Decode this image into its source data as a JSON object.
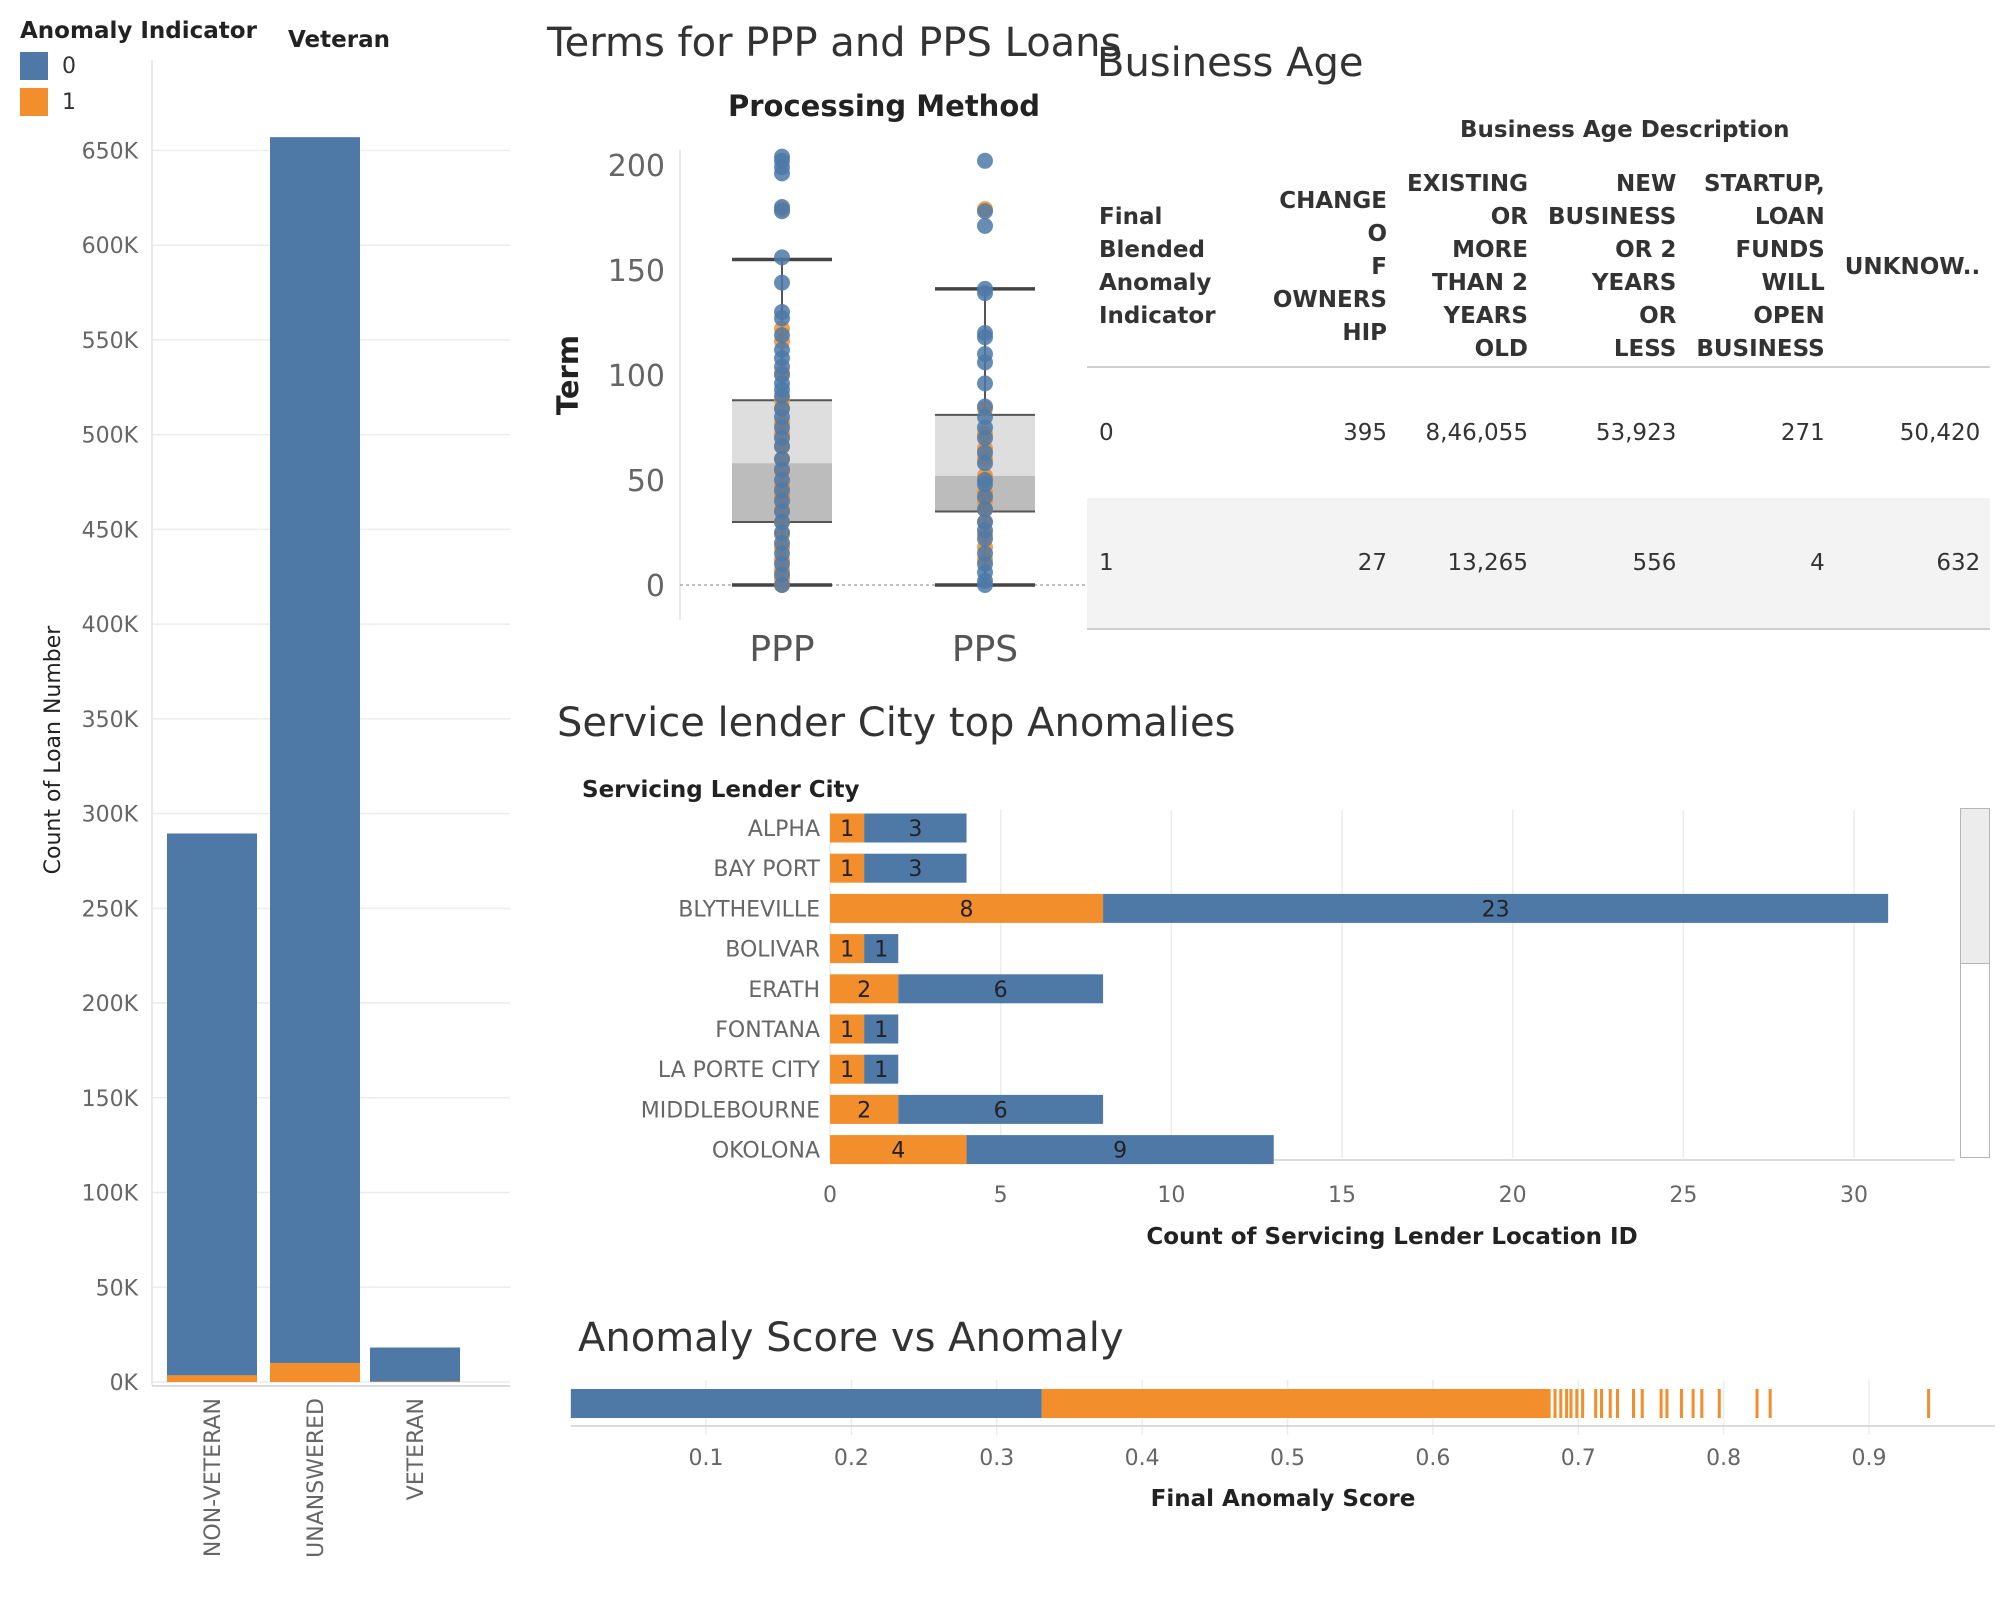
{
  "colors": {
    "anomaly_0": "#4e79a7",
    "anomaly_1": "#f28e2b",
    "grid": "#ececec",
    "box_light": "#dedede",
    "box_dark": "#bcbcbc"
  },
  "legend": {
    "title": "Anomaly Indicator",
    "items": [
      {
        "label": "0",
        "color": "#4e79a7"
      },
      {
        "label": "1",
        "color": "#f28e2b"
      }
    ]
  },
  "business_age": {
    "title": "Business Age",
    "super_header": "Business Age Description",
    "row_header": "Final\nBlended\nAnomaly\nIndicator",
    "columns": [
      "CHANGE O\nF OWNERS\nHIP",
      "EXISTING\nOR MORE\nTHAN 2\nYEARS\nOLD",
      "NEW\nBUSINESS\nOR 2\nYEARS OR\nLESS",
      "STARTUP,\nLOAN\nFUNDS\nWILL OPEN\nBUSINESS",
      "UNKNOW.."
    ],
    "rows": [
      {
        "label": "0",
        "values": [
          "395",
          "8,46,055",
          "53,923",
          "271",
          "50,420"
        ]
      },
      {
        "label": "1",
        "values": [
          "27",
          "13,265",
          "556",
          "4",
          "632"
        ]
      }
    ]
  },
  "chart_data": [
    {
      "type": "bar",
      "id": "veteran",
      "title": "",
      "header": "Veteran",
      "stacked": true,
      "categories": [
        "NON-VETERAN",
        "UNANSWERED",
        "VETERAN"
      ],
      "series": [
        {
          "name": "0",
          "values": [
            286000,
            647000,
            18000
          ]
        },
        {
          "name": "1",
          "values": [
            3500,
            10000,
            200
          ]
        }
      ],
      "ylabel": "Count of Loan Number",
      "ylim": [
        0,
        665000
      ],
      "yticks": [
        0,
        50000,
        100000,
        150000,
        200000,
        250000,
        300000,
        350000,
        400000,
        450000,
        500000,
        550000,
        600000,
        650000
      ],
      "ytick_labels": [
        "0K",
        "50K",
        "100K",
        "150K",
        "200K",
        "250K",
        "300K",
        "350K",
        "400K",
        "450K",
        "500K",
        "550K",
        "600K",
        "650K"
      ],
      "grid": true
    },
    {
      "type": "box",
      "id": "terms",
      "title": "Terms for PPP and PPS Loans",
      "header": "Processing Method",
      "categories": [
        "PPP",
        "PPS"
      ],
      "ylabel": "Term",
      "ylim": [
        -18,
        205
      ],
      "yticks": [
        0,
        50,
        100,
        150,
        200
      ],
      "boxes": [
        {
          "category": "PPP",
          "whisker_low": 0,
          "q1": 30,
          "median": 58,
          "q3": 88,
          "whisker_high": 155
        },
        {
          "category": "PPS",
          "whisker_low": 0,
          "q1": 35,
          "median": 52,
          "q3": 81,
          "whisker_high": 141
        }
      ],
      "points_0": [
        {
          "category": "PPP",
          "values": [
            204,
            202,
            199,
            196,
            180,
            178,
            156,
            144,
            130,
            127,
            119,
            112,
            108,
            104,
            100,
            96,
            93,
            90,
            84,
            80,
            75,
            70,
            66,
            60,
            55,
            50,
            45,
            40,
            35,
            30,
            25,
            20,
            15,
            10,
            5,
            0
          ]
        },
        {
          "category": "PPS",
          "values": [
            202,
            178,
            171,
            141,
            139,
            120,
            118,
            110,
            106,
            96,
            85,
            80,
            75,
            70,
            63,
            58,
            50,
            48,
            42,
            36,
            30,
            26,
            22,
            15,
            10,
            6,
            2,
            0
          ]
        }
      ],
      "points_1": [
        {
          "category": "PPP",
          "values": [
            179,
            122,
            116,
            101,
            88,
            84,
            77,
            72,
            66,
            60,
            54,
            47,
            42,
            36,
            30,
            24,
            18,
            12,
            7,
            3,
            0
          ]
        },
        {
          "category": "PPS",
          "values": [
            179,
            84,
            72,
            65,
            60,
            52,
            44,
            40,
            36,
            30,
            24,
            18,
            12
          ]
        }
      ]
    },
    {
      "type": "bar",
      "id": "lender_city",
      "orientation": "horizontal",
      "stacked": true,
      "title": "Service lender City top Anomalies",
      "header": "Servicing Lender City",
      "categories": [
        "ALPHA",
        "BAY PORT",
        "BLYTHEVILLE",
        "BOLIVAR",
        "ERATH",
        "FONTANA",
        "LA PORTE CITY",
        "MIDDLEBOURNE",
        "OKOLONA"
      ],
      "series": [
        {
          "name": "1",
          "values": [
            1,
            1,
            8,
            1,
            2,
            1,
            1,
            2,
            4
          ]
        },
        {
          "name": "0",
          "values": [
            3,
            3,
            23,
            1,
            6,
            1,
            1,
            6,
            9
          ]
        }
      ],
      "xlabel": "Count of Servicing Lender Location ID",
      "xlim": [
        0,
        33.5
      ],
      "xticks": [
        0,
        5,
        10,
        15,
        20,
        25,
        30
      ],
      "grid": true
    },
    {
      "type": "strip",
      "id": "anomaly_score",
      "title": "Anomaly Score vs Anomaly",
      "xlabel": "Final Anomaly Score",
      "xlim": [
        0.007,
        0.95
      ],
      "xticks": [
        0.1,
        0.2,
        0.3,
        0.4,
        0.5,
        0.6,
        0.7,
        0.8,
        0.9
      ],
      "segments": [
        {
          "series": "0",
          "from": 0.007,
          "to": 0.331
        },
        {
          "series": "1",
          "from": 0.331,
          "to": 0.681
        }
      ],
      "marks_1": [
        0.684,
        0.688,
        0.692,
        0.695,
        0.699,
        0.703,
        0.712,
        0.716,
        0.722,
        0.727,
        0.738,
        0.744,
        0.757,
        0.761,
        0.771,
        0.779,
        0.785,
        0.797,
        0.823,
        0.832,
        0.941
      ]
    }
  ]
}
